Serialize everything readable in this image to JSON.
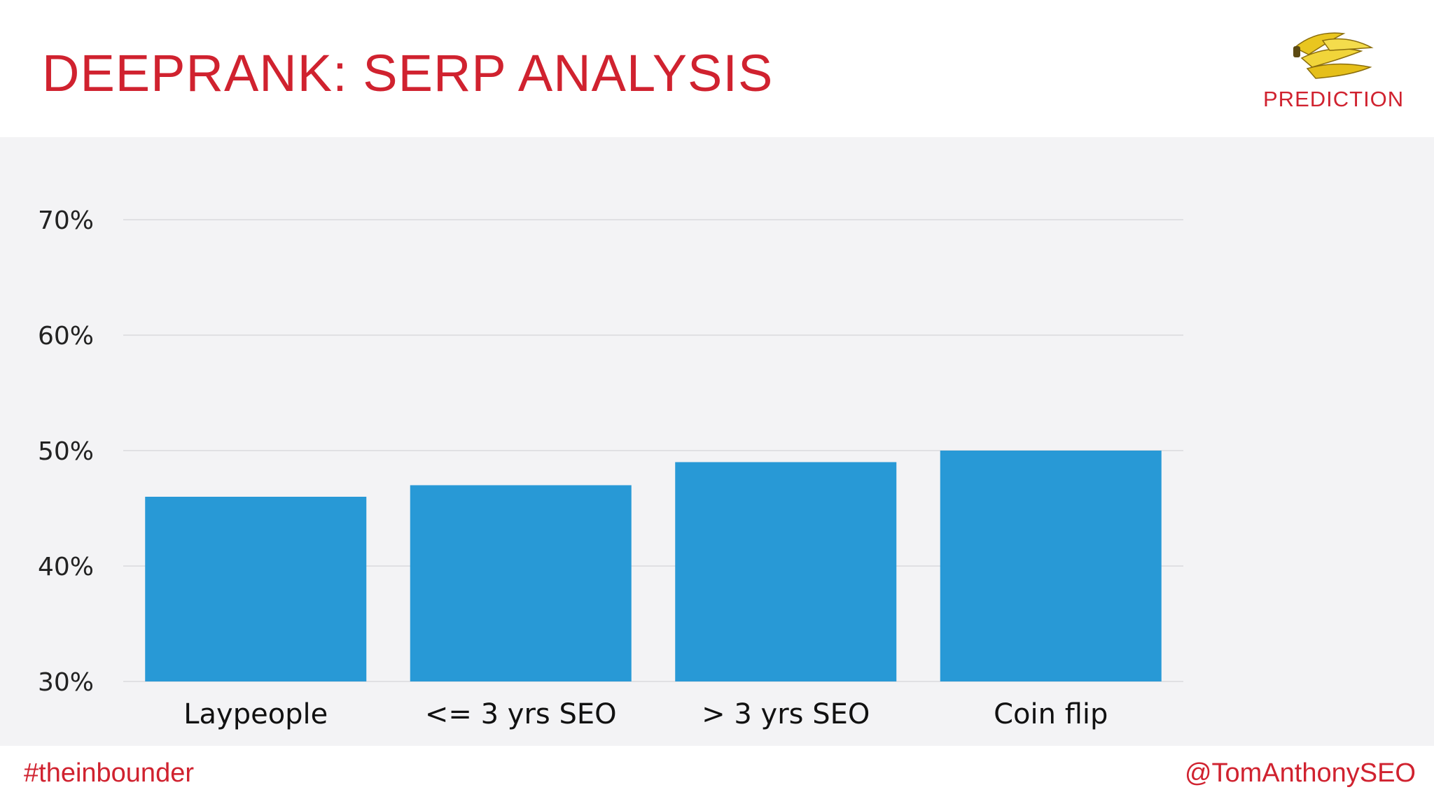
{
  "header": {
    "title": "DEEPRANK: SERP ANALYSIS",
    "badge_label": "PREDICTION",
    "badge_icon": "bananas-icon"
  },
  "footer": {
    "hashtag": "#theinbounder",
    "handle": "@TomAnthonySEO"
  },
  "colors": {
    "accent": "#d0222f",
    "bar": "#2899d6",
    "panel": "#f3f3f5",
    "grid": "#d9d9dd"
  },
  "chart_data": {
    "type": "bar",
    "categories": [
      "Laypeople",
      "<= 3 yrs SEO",
      "> 3 yrs SEO",
      "Coin flip"
    ],
    "values": [
      46,
      47,
      49,
      50
    ],
    "ylim": [
      30,
      70
    ],
    "yticks": [
      30,
      40,
      50,
      60,
      70
    ],
    "ytick_labels": [
      "30%",
      "40%",
      "50%",
      "60%",
      "70%"
    ],
    "title": "",
    "xlabel": "",
    "ylabel": "",
    "grid": true,
    "legend": "none"
  }
}
